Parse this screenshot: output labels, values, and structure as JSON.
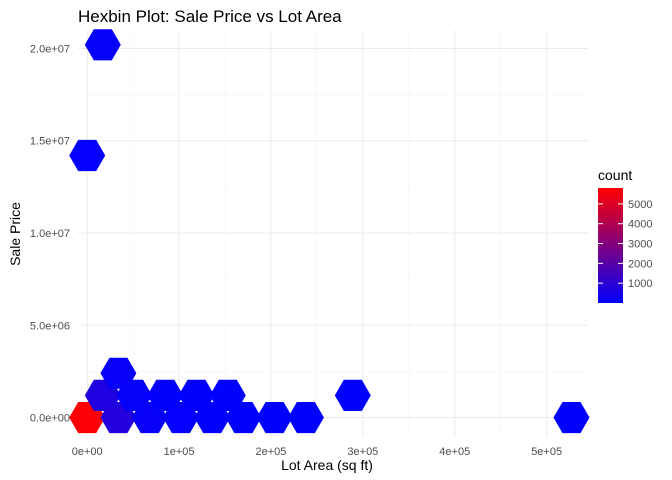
{
  "chart_data": {
    "type": "hexbin",
    "title": "Hexbin Plot: Sale Price vs Lot Area",
    "xlabel": "Lot Area (sq ft)",
    "ylabel": "Sale Price",
    "xlim": [
      -10000,
      545000
    ],
    "ylim": [
      -1000000,
      21000000
    ],
    "x_ticks": [
      0,
      100000,
      200000,
      300000,
      400000,
      500000
    ],
    "x_tick_labels": [
      "0e+00",
      "1e+05",
      "2e+05",
      "3e+05",
      "4e+05",
      "5e+05"
    ],
    "y_ticks": [
      0,
      5000000,
      10000000,
      15000000,
      20000000
    ],
    "y_tick_labels": [
      "0.0e+00",
      "5.0e+06",
      "1.0e+07",
      "1.5e+07",
      "2.0e+07"
    ],
    "grid": true,
    "color_scale": {
      "low": "#0000FF",
      "high": "#FF0000",
      "max": 5800
    },
    "legend": {
      "title": "count",
      "position": "right",
      "ticks": [
        1000,
        2000,
        3000,
        4000,
        5000
      ],
      "tick_labels": [
        "1000",
        "2000",
        "3000",
        "4000",
        "5000"
      ]
    },
    "bins": [
      {
        "x": 0,
        "y": 0,
        "count": 5700
      },
      {
        "x": 34000,
        "y": 0,
        "count": 800
      },
      {
        "x": 68000,
        "y": 0,
        "count": 150
      },
      {
        "x": 102000,
        "y": 0,
        "count": 60
      },
      {
        "x": 136000,
        "y": 0,
        "count": 20
      },
      {
        "x": 170000,
        "y": 0,
        "count": 8
      },
      {
        "x": 204000,
        "y": 0,
        "count": 5
      },
      {
        "x": 238000,
        "y": 0,
        "count": 3
      },
      {
        "x": 17000,
        "y": 1200000,
        "count": 700
      },
      {
        "x": 51000,
        "y": 1200000,
        "count": 120
      },
      {
        "x": 85000,
        "y": 1200000,
        "count": 30
      },
      {
        "x": 119000,
        "y": 1200000,
        "count": 12
      },
      {
        "x": 153000,
        "y": 1200000,
        "count": 6
      },
      {
        "x": 34000,
        "y": 2400000,
        "count": 150
      },
      {
        "x": 289000,
        "y": 1200000,
        "count": 3
      },
      {
        "x": 527000,
        "y": 0,
        "count": 2
      },
      {
        "x": 0,
        "y": 14200000,
        "count": 60
      },
      {
        "x": 17000,
        "y": 20200000,
        "count": 120
      }
    ]
  }
}
